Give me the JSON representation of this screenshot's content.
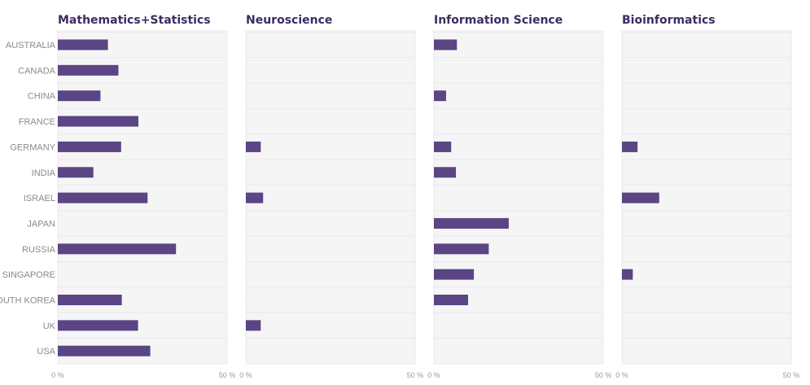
{
  "colors": {
    "bar": "#5b4584",
    "panel_bg": "#f5f5f6",
    "gridline": "#e9e9ec",
    "title": "#3d2b63",
    "category_text": "#8a8a8a",
    "tick_text": "#9a9a9a"
  },
  "chart_data": {
    "type": "bar",
    "orientation": "horizontal",
    "categories": [
      "AUSTRALIA",
      "CANADA",
      "CHINA",
      "FRANCE",
      "GERMANY",
      "INDIA",
      "ISRAEL",
      "JAPAN",
      "RUSSIA",
      "SINGAPORE",
      "SOUTH KOREA",
      "UK",
      "USA"
    ],
    "xlim": [
      0,
      50
    ],
    "x_ticks": [
      "0 %",
      "50 %"
    ],
    "grid": true,
    "panels": [
      {
        "title": "Mathematics+Statistics",
        "values": [
          14.8,
          17.9,
          12.6,
          23.8,
          18.7,
          10.5,
          26.5,
          null,
          34.9,
          null,
          18.9,
          23.7,
          27.3
        ]
      },
      {
        "title": "Neuroscience",
        "values": [
          null,
          null,
          null,
          null,
          4.4,
          null,
          5.1,
          null,
          null,
          null,
          null,
          4.4,
          null
        ]
      },
      {
        "title": "Information Science",
        "values": [
          6.8,
          null,
          3.6,
          null,
          5.1,
          6.5,
          null,
          22.1,
          16.2,
          11.8,
          10.1,
          null,
          null
        ]
      },
      {
        "title": "Bioinformatics",
        "values": [
          null,
          null,
          null,
          null,
          4.6,
          null,
          11.0,
          null,
          null,
          3.2,
          null,
          null,
          null
        ]
      }
    ]
  }
}
